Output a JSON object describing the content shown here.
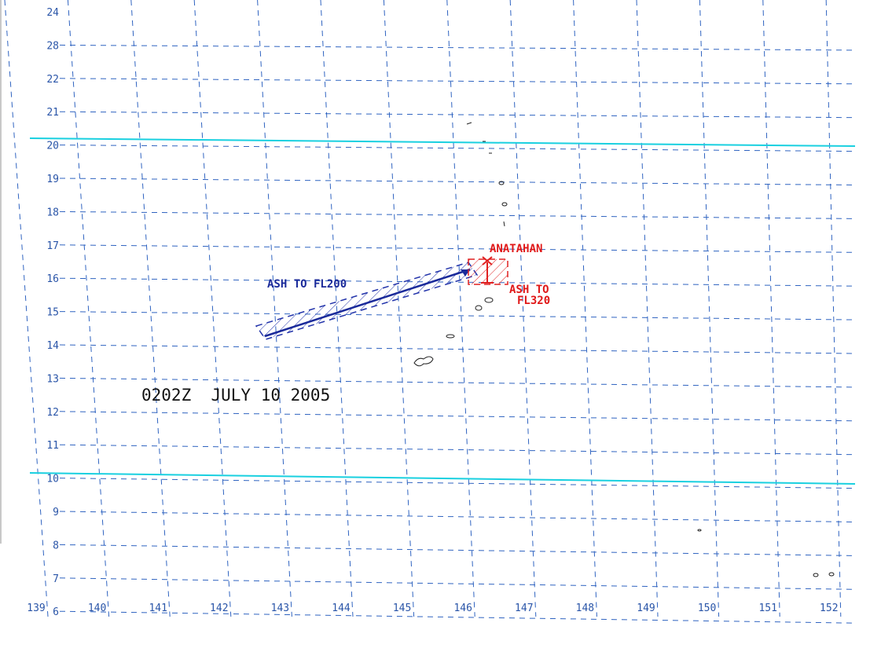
{
  "latitude_labels": [
    "24",
    "28",
    "22",
    "21",
    "20",
    "19",
    "18",
    "17",
    "16",
    "15",
    "14",
    "13",
    "12",
    "11",
    "10",
    "9",
    "8",
    "7",
    "6"
  ],
  "longitude_labels": [
    "139",
    "140",
    "141",
    "142",
    "143",
    "144",
    "145",
    "146",
    "147",
    "148",
    "149",
    "150",
    "151",
    "152"
  ],
  "annotations": {
    "volcano": "ANATAHAN",
    "ash_low": "ASH TO FL200",
    "ash_high_line1": "ASH TO",
    "ash_high_line2": "FL320",
    "timestamp": "0202Z  JULY 10 2005"
  }
}
